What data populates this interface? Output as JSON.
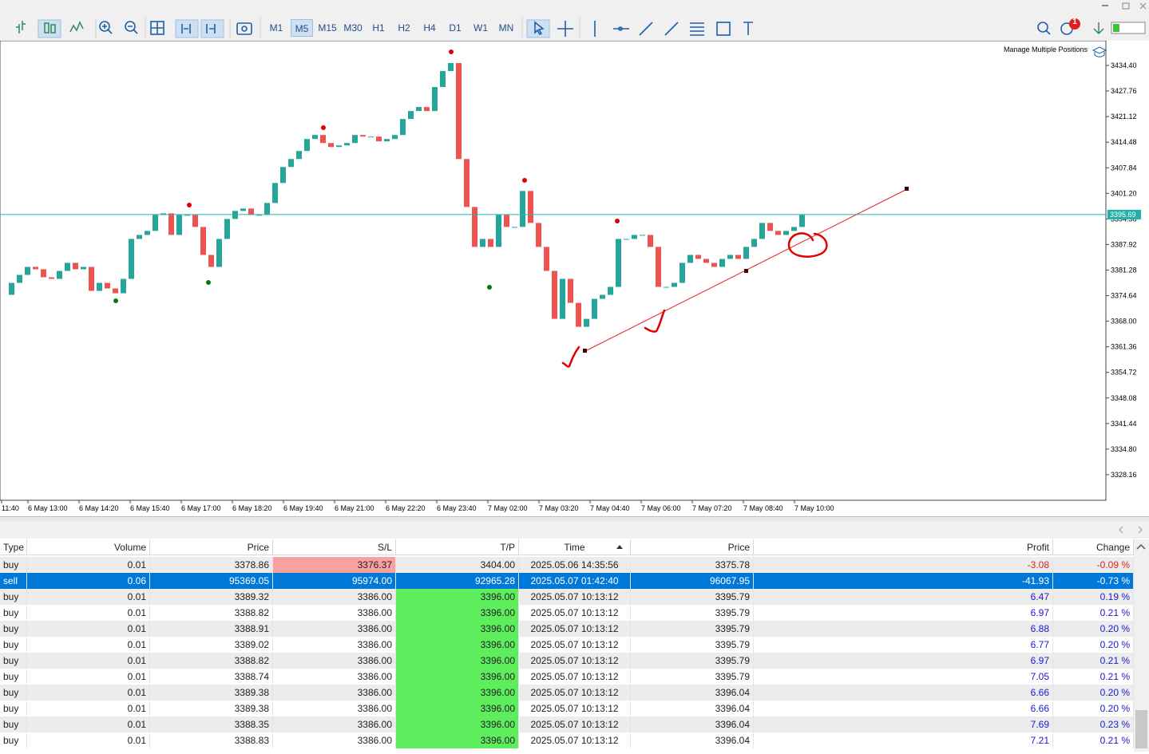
{
  "toolbar": {
    "timeframes": [
      "M1",
      "M5",
      "M15",
      "M30",
      "H1",
      "H2",
      "H4",
      "D1",
      "W1",
      "MN"
    ],
    "active_timeframe": "M5",
    "notifications": "1"
  },
  "chart": {
    "manage_label": "Manage Multiple Positions",
    "ylim": [
      3321.52,
      3440.83
    ],
    "yticks": [
      {
        "value": 3434.4,
        "label": "3434.40"
      },
      {
        "value": 3427.76,
        "label": "3427.76"
      },
      {
        "value": 3421.12,
        "label": "3421.12"
      },
      {
        "value": 3414.48,
        "label": "3414.48"
      },
      {
        "value": 3407.84,
        "label": "3407.84"
      },
      {
        "value": 3401.2,
        "label": "3401.20"
      },
      {
        "value": 3394.56,
        "label": "3394.56"
      },
      {
        "value": 3387.92,
        "label": "3387.92"
      },
      {
        "value": 3381.28,
        "label": "3381.28"
      },
      {
        "value": 3374.64,
        "label": "3374.64"
      },
      {
        "value": 3368,
        "label": "3368.00"
      },
      {
        "value": 3361.36,
        "label": "3361.36"
      },
      {
        "value": 3354.72,
        "label": "3354.72"
      },
      {
        "value": 3348.08,
        "label": "3348.08"
      },
      {
        "value": 3341.44,
        "label": "3341.44"
      },
      {
        "value": 3334.8,
        "label": "3334.80"
      },
      {
        "value": 3328.16,
        "label": "3328.16"
      }
    ],
    "current_price": {
      "value": 3395.69,
      "label": "3395.69"
    },
    "time_labels": [
      "11:40",
      "6 May 13:00",
      "6 May 14:20",
      "6 May 15:40",
      "6 May 17:00",
      "6 May 18:20",
      "6 May 19:40",
      "6 May 21:00",
      "6 May 22:20",
      "6 May 23:40",
      "7 May 02:00",
      "7 May 03:20",
      "7 May 04:40",
      "7 May 06:00",
      "7 May 07:20",
      "7 May 08:40",
      "7 May 10:00"
    ],
    "prices": [
      3374.85,
      3377.96,
      3380.03,
      3382.11,
      3381.49,
      3379.41,
      3379.0,
      3381.07,
      3383.15,
      3381.49,
      3382.11,
      3375.88,
      3377.96,
      3376.51,
      3375.26,
      3379.0,
      3389.37,
      3390.41,
      3391.45,
      3395.6,
      3396.01,
      3390.41,
      3395.6,
      3395.6,
      3392.48,
      3385.22,
      3382.11,
      3389.37,
      3394.56,
      3396.63,
      3397.26,
      3395.6,
      3395.6,
      3398.71,
      3403.9,
      3408.05,
      3410.12,
      3412.2,
      3415.31,
      3416.35,
      3414.27,
      3413.23,
      3413.65,
      3414.27,
      3416.35,
      3415.93,
      3415.93,
      3414.69,
      3415.31,
      3416.35,
      3420.5,
      3422.57,
      3423.61,
      3422.57,
      3428.8,
      3432.95,
      3435.02,
      3410.12,
      3397.67,
      3387.3,
      3389.37,
      3387.3,
      3395.6,
      3392.48,
      3392.48,
      3401.82,
      3393.52,
      3387.3,
      3381.07,
      3368.62,
      3379.0,
      3372.77,
      3366.55,
      3368.62,
      3373.81,
      3374.85,
      3376.92,
      3389.37,
      3389.37,
      3390.41,
      3390.41,
      3387.3,
      3376.92,
      3376.92,
      3377.96,
      3383.15,
      3385.22,
      3384.18,
      3383.15,
      3382.11,
      3384.18,
      3385.22,
      3384.18,
      3387.3,
      3389.37,
      3393.52,
      3391.45,
      3390.41,
      3391.45,
      3392.48,
      3395.6
    ]
  },
  "table": {
    "headers": [
      "Type",
      "Volume",
      "Price",
      "S/L",
      "T/P",
      "Time",
      "Price",
      "Profit",
      "Change"
    ],
    "rows": [
      [
        "buy",
        "0.01",
        "3378.86",
        "3376.37",
        "3404.00",
        "2025.05.06 14:35:56",
        "3375.78",
        "-3.08",
        "-0.09 %"
      ],
      [
        "sell",
        "0.06",
        "95369.05",
        "95974.00",
        "92965.28",
        "2025.05.07 01:42:40",
        "96067.95",
        "-41.93",
        "-0.73 %"
      ],
      [
        "buy",
        "0.01",
        "3389.32",
        "3386.00",
        "3396.00",
        "2025.05.07 10:13:12",
        "3395.79",
        "6.47",
        "0.19 %"
      ],
      [
        "buy",
        "0.01",
        "3388.82",
        "3386.00",
        "3396.00",
        "2025.05.07 10:13:12",
        "3395.79",
        "6.97",
        "0.21 %"
      ],
      [
        "buy",
        "0.01",
        "3388.91",
        "3386.00",
        "3396.00",
        "2025.05.07 10:13:12",
        "3395.79",
        "6.88",
        "0.20 %"
      ],
      [
        "buy",
        "0.01",
        "3389.02",
        "3386.00",
        "3396.00",
        "2025.05.07 10:13:12",
        "3395.79",
        "6.77",
        "0.20 %"
      ],
      [
        "buy",
        "0.01",
        "3388.82",
        "3386.00",
        "3396.00",
        "2025.05.07 10:13:12",
        "3395.79",
        "6.97",
        "0.21 %"
      ],
      [
        "buy",
        "0.01",
        "3388.74",
        "3386.00",
        "3396.00",
        "2025.05.07 10:13:12",
        "3395.79",
        "7.05",
        "0.21 %"
      ],
      [
        "buy",
        "0.01",
        "3389.38",
        "3386.00",
        "3396.00",
        "2025.05.07 10:13:12",
        "3396.04",
        "6.66",
        "0.20 %"
      ],
      [
        "buy",
        "0.01",
        "3389.38",
        "3386.00",
        "3396.00",
        "2025.05.07 10:13:12",
        "3396.04",
        "6.66",
        "0.20 %"
      ],
      [
        "buy",
        "0.01",
        "3388.35",
        "3386.00",
        "3396.00",
        "2025.05.07 10:13:12",
        "3396.04",
        "7.69",
        "0.23 %"
      ],
      [
        "buy",
        "0.01",
        "3388.83",
        "3386.00",
        "3396.00",
        "2025.05.07 10:13:12",
        "3396.04",
        "7.21",
        "0.21 %"
      ]
    ]
  }
}
